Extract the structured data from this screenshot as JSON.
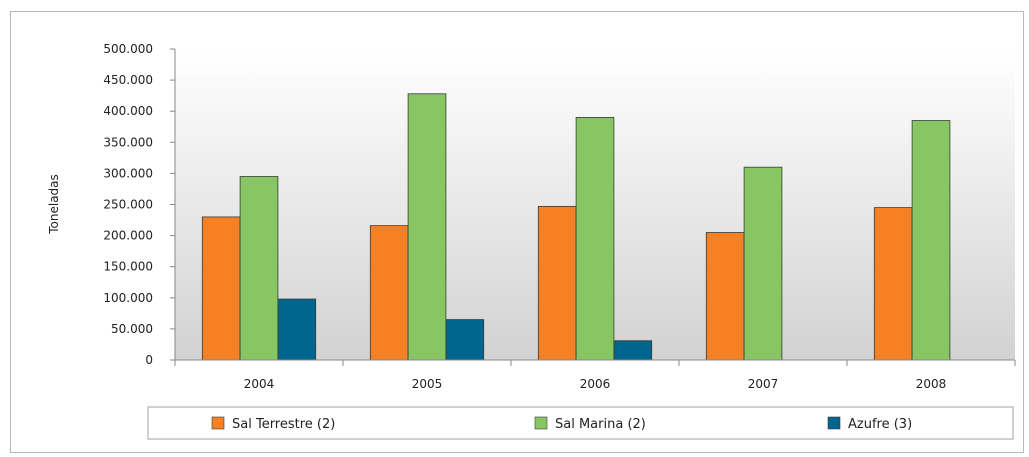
{
  "chart_data": {
    "type": "bar",
    "categories": [
      "2004",
      "2005",
      "2006",
      "2007",
      "2008"
    ],
    "series": [
      {
        "name": "Sal Terrestre (2)",
        "color": "#f68124",
        "values": [
          230000,
          216000,
          247000,
          205000,
          245000
        ]
      },
      {
        "name": "Sal Marina (2)",
        "color": "#88c663",
        "values": [
          295000,
          428000,
          390000,
          310000,
          385000
        ]
      },
      {
        "name": "Azufre (3)",
        "color": "#00658f",
        "values": [
          98000,
          65000,
          31000,
          null,
          null
        ]
      }
    ],
    "ylabel": "Toneladas",
    "ylim": [
      0,
      500000
    ],
    "yticks": [
      0,
      50000,
      100000,
      150000,
      200000,
      250000,
      300000,
      350000,
      400000,
      450000,
      500000
    ],
    "ytick_labels": [
      "0",
      "50.000",
      "100.000",
      "150.000",
      "200.000",
      "250.000",
      "300.000",
      "350.000",
      "400.000",
      "450.000",
      "500.000"
    ],
    "grid": false,
    "legend_position": "bottom",
    "background": "gradient white-to-gray"
  }
}
